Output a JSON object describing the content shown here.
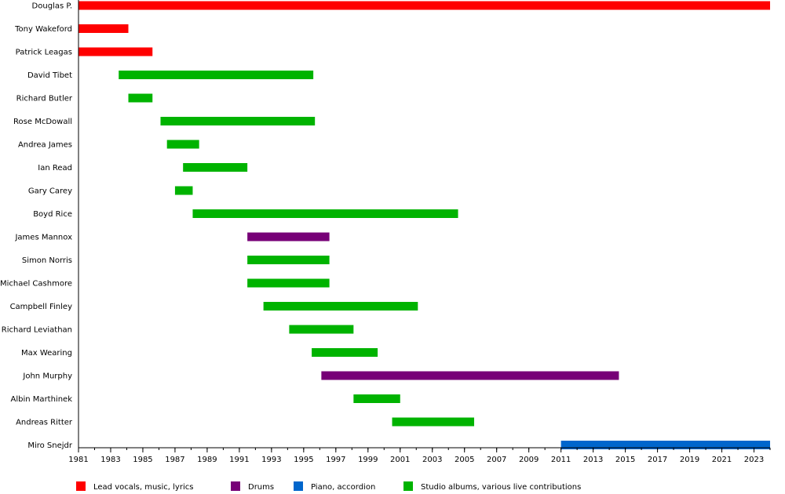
{
  "chart_data": {
    "type": "timeline",
    "title": "",
    "x_range": [
      1981,
      2024
    ],
    "x_ticks": [
      "1981",
      "1983",
      "1985",
      "1987",
      "1989",
      "1991",
      "1993",
      "1995",
      "1997",
      "1999",
      "2001",
      "2003",
      "2005",
      "2007",
      "2009",
      "2011",
      "2013",
      "2015",
      "2017",
      "2019",
      "2021",
      "2023"
    ],
    "roles": [
      {
        "key": "vocals",
        "name": "Lead vocals, music, lyrics",
        "color": "#ff0000"
      },
      {
        "key": "drums",
        "name": "Drums",
        "color": "#770077"
      },
      {
        "key": "piano",
        "name": "Piano, accordion",
        "color": "#0066cc"
      },
      {
        "key": "studio",
        "name": "Studio albums, various live contributions",
        "color": "#00b300"
      }
    ],
    "members": [
      {
        "name": "Douglas P.",
        "start": 1981.0,
        "end": 2024.0,
        "role": "vocals"
      },
      {
        "name": "Tony Wakeford",
        "start": 1981.0,
        "end": 1984.1,
        "role": "vocals"
      },
      {
        "name": "Patrick Leagas",
        "start": 1981.0,
        "end": 1985.6,
        "role": "vocals"
      },
      {
        "name": "David Tibet",
        "start": 1983.5,
        "end": 1995.6,
        "role": "studio"
      },
      {
        "name": "Richard Butler",
        "start": 1984.1,
        "end": 1985.6,
        "role": "studio"
      },
      {
        "name": "Rose McDowall",
        "start": 1986.1,
        "end": 1995.7,
        "role": "studio"
      },
      {
        "name": "Andrea James",
        "start": 1986.5,
        "end": 1988.5,
        "role": "studio"
      },
      {
        "name": "Ian Read",
        "start": 1987.5,
        "end": 1991.5,
        "role": "studio"
      },
      {
        "name": "Gary Carey",
        "start": 1987.0,
        "end": 1988.1,
        "role": "studio"
      },
      {
        "name": "Boyd Rice",
        "start": 1988.1,
        "end": 2004.6,
        "role": "studio"
      },
      {
        "name": "James Mannox",
        "start": 1991.5,
        "end": 1996.6,
        "role": "drums"
      },
      {
        "name": "Simon Norris",
        "start": 1991.5,
        "end": 1996.6,
        "role": "studio"
      },
      {
        "name": "Michael Cashmore",
        "start": 1991.5,
        "end": 1996.6,
        "role": "studio"
      },
      {
        "name": "Campbell Finley",
        "start": 1992.5,
        "end": 2002.1,
        "role": "studio"
      },
      {
        "name": "Richard Leviathan",
        "start": 1994.1,
        "end": 1998.1,
        "role": "studio"
      },
      {
        "name": "Max Wearing",
        "start": 1995.5,
        "end": 1999.6,
        "role": "studio"
      },
      {
        "name": "John Murphy",
        "start": 1996.1,
        "end": 2014.6,
        "role": "drums"
      },
      {
        "name": "Albin Marthinek",
        "start": 1998.1,
        "end": 2001.0,
        "role": "studio"
      },
      {
        "name": "Andreas Ritter",
        "start": 2000.5,
        "end": 2005.6,
        "role": "studio"
      },
      {
        "name": "Miro Snejdr",
        "start": 2011.0,
        "end": 2024.0,
        "role": "piano"
      }
    ]
  }
}
